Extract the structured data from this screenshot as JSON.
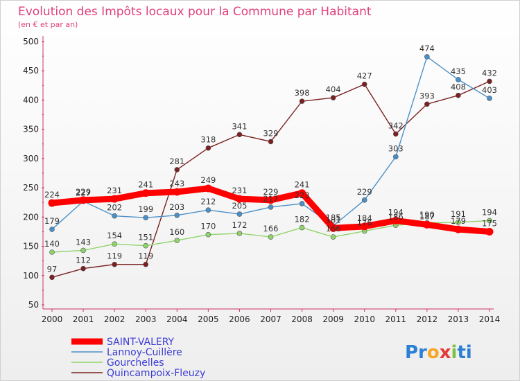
{
  "chart_data": {
    "type": "line",
    "title": "Evolution des Impôts locaux pour la Commune par Habitant",
    "subtitle": "(en € et par an)",
    "x": [
      "2000",
      "2001",
      "2002",
      "2003",
      "2004",
      "2005",
      "2006",
      "2007",
      "2008",
      "2009",
      "2010",
      "2011",
      "2012",
      "2013",
      "2014"
    ],
    "ylim": [
      50,
      500
    ],
    "yticks": [
      50,
      100,
      150,
      200,
      250,
      300,
      350,
      400,
      450,
      500
    ],
    "grid": false,
    "legend_position": "bottom-left",
    "series": [
      {
        "name": "SAINT-VALERY",
        "color": "#ff0000",
        "values": [
          224,
          229,
          231,
          241,
          243,
          249,
          231,
          229,
          241,
          181,
          184,
          194,
          187,
          179,
          175
        ]
      },
      {
        "name": "Lannoy-Cuillère",
        "color": "#4a90c8",
        "values": [
          179,
          227,
          202,
          199,
          203,
          212,
          205,
          217,
          223,
          185,
          229,
          303,
          474,
          435,
          403
        ]
      },
      {
        "name": "Gourchelles",
        "color": "#8fd46a",
        "values": [
          140,
          143,
          154,
          151,
          160,
          170,
          172,
          166,
          182,
          166,
          176,
          186,
          190,
          191,
          194
        ]
      },
      {
        "name": "Quincampoix-Fleuzy",
        "color": "#7a2020",
        "values": [
          97,
          112,
          119,
          119,
          281,
          318,
          341,
          329,
          398,
          404,
          427,
          342,
          393,
          408,
          432
        ]
      }
    ]
  },
  "branding": {
    "logo_parts": [
      "Pr",
      "o",
      "x",
      "i",
      "ti"
    ],
    "logo_colors": [
      "#2d7fd4",
      "#f5a623",
      "#e53935",
      "#7cc242",
      "#2d7fd4"
    ]
  }
}
